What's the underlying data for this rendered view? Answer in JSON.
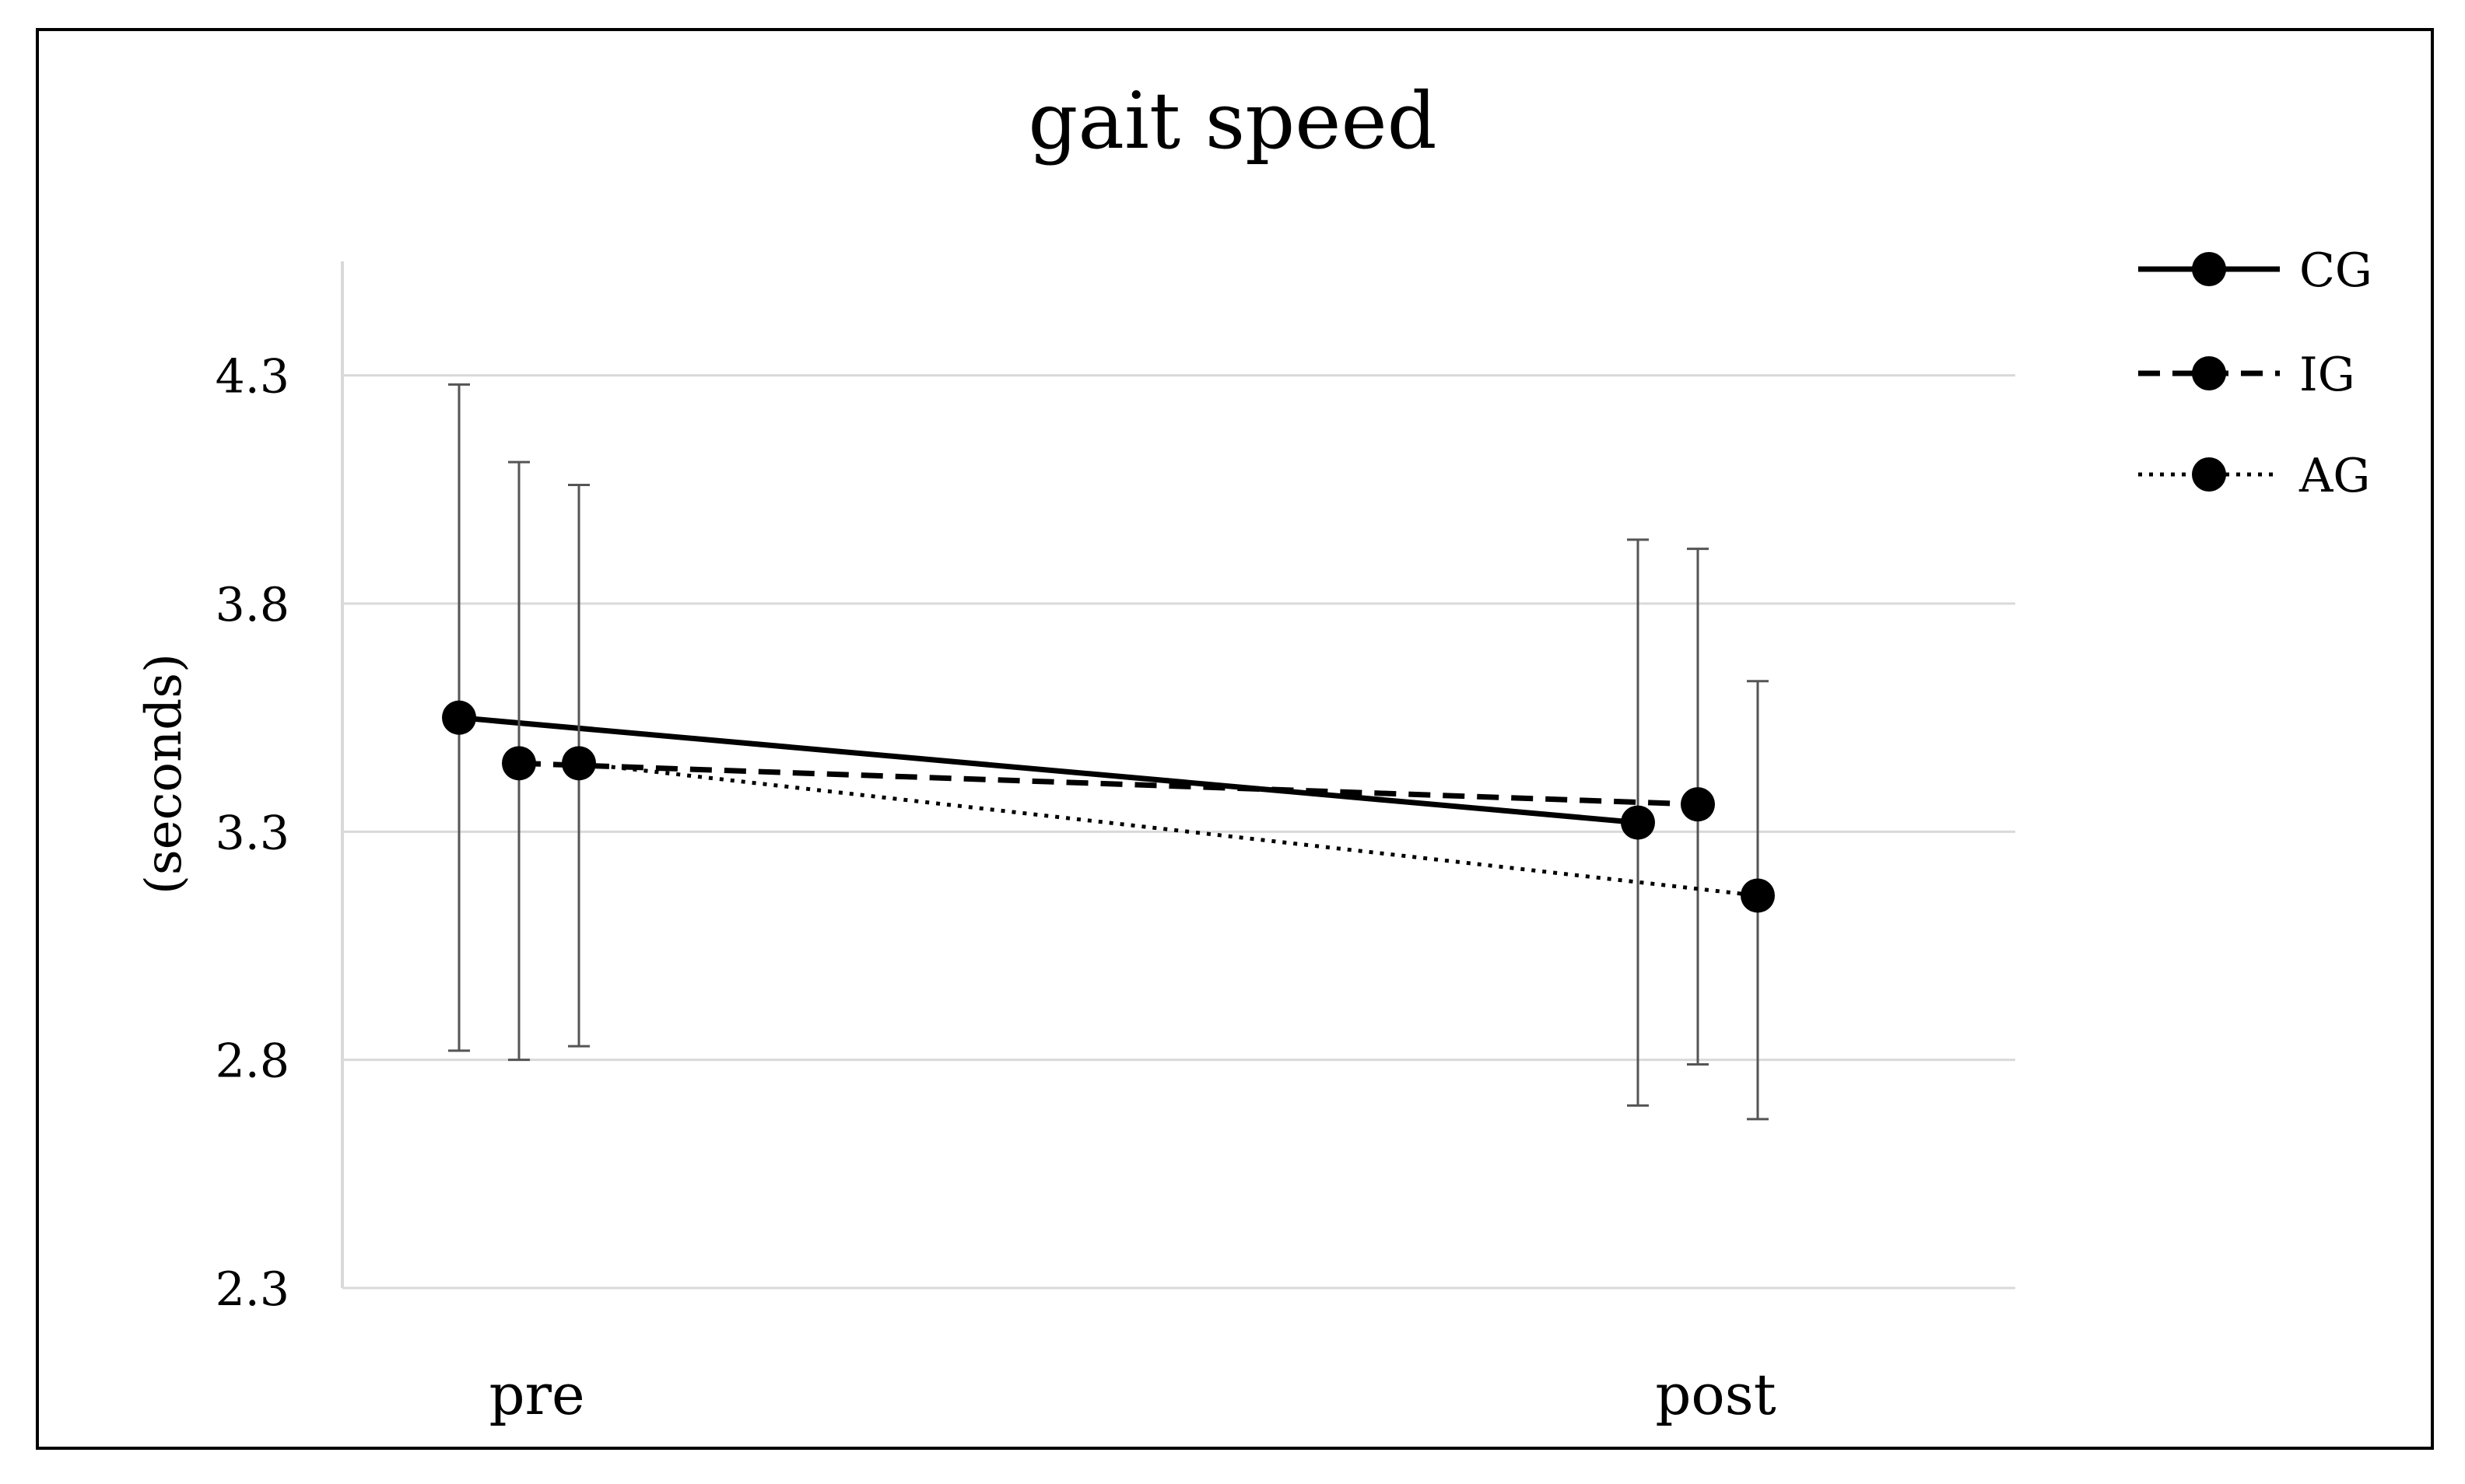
{
  "chart_data": {
    "type": "line",
    "title": "gait speed",
    "xlabel": "",
    "ylabel": "(seconds)",
    "categories": [
      "pre",
      "post"
    ],
    "ylim": [
      2.3,
      4.55
    ],
    "yticks": [
      "2.3",
      "2.8",
      "3.3",
      "3.8",
      "4.3"
    ],
    "grid": true,
    "legend_position": "top-right",
    "series": [
      {
        "name": "CG",
        "style": "solid",
        "values": [
          3.55,
          3.32
        ],
        "error_low": [
          2.82,
          2.7
        ],
        "error_high": [
          4.28,
          3.94
        ]
      },
      {
        "name": "IG",
        "style": "dashed",
        "values": [
          3.45,
          3.36
        ],
        "error_low": [
          2.8,
          2.79
        ],
        "error_high": [
          4.11,
          3.92
        ]
      },
      {
        "name": "AG",
        "style": "dotted",
        "values": [
          3.45,
          3.16
        ],
        "error_low": [
          2.83,
          2.67
        ],
        "error_high": [
          4.06,
          3.63
        ]
      }
    ],
    "colors": {
      "line": "#000000",
      "grid": "#d9d9d9",
      "errorbar": "#555555"
    }
  }
}
